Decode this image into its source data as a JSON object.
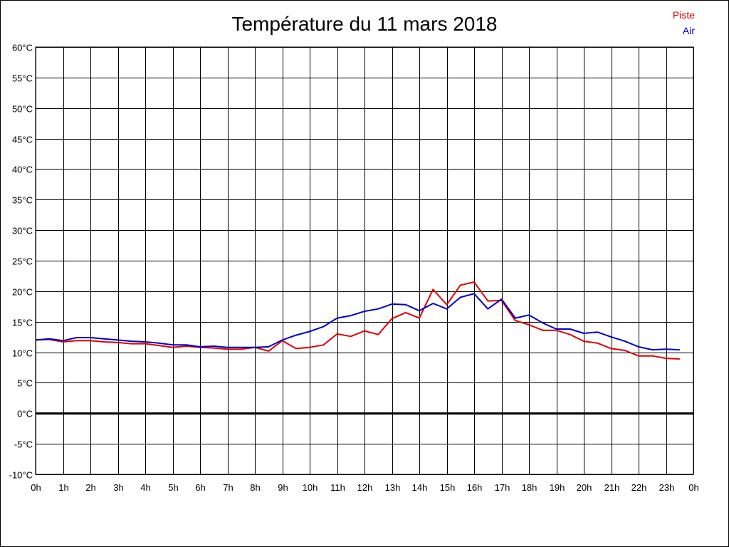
{
  "chart_data": {
    "type": "line",
    "title": "Température du 11 mars 2018",
    "xlabel": "",
    "ylabel": "",
    "ylim": [
      -10,
      60
    ],
    "xlim": [
      0,
      24
    ],
    "grid": true,
    "legend_position": "top-right",
    "y_ticks": [
      60,
      55,
      50,
      45,
      40,
      35,
      30,
      25,
      20,
      15,
      10,
      5,
      0,
      -5,
      -10
    ],
    "y_tick_labels": [
      "60°C",
      "55°C",
      "50°C",
      "45°C",
      "40°C",
      "35°C",
      "30°C",
      "25°C",
      "20°C",
      "15°C",
      "10°C",
      "5°C",
      "0°C",
      "-5°C",
      "-10°C"
    ],
    "x_ticks": [
      0,
      1,
      2,
      3,
      4,
      5,
      6,
      7,
      8,
      9,
      10,
      11,
      12,
      13,
      14,
      15,
      16,
      17,
      18,
      19,
      20,
      21,
      22,
      23,
      24
    ],
    "x_tick_labels": [
      "0h",
      "1h",
      "2h",
      "3h",
      "4h",
      "5h",
      "6h",
      "7h",
      "8h",
      "9h",
      "10h",
      "11h",
      "12h",
      "13h",
      "14h",
      "15h",
      "16h",
      "17h",
      "18h",
      "19h",
      "20h",
      "21h",
      "22h",
      "23h",
      "0h"
    ],
    "series": [
      {
        "name": "Piste",
        "color": "#e00000",
        "x": [
          0,
          0.5,
          1,
          1.5,
          2,
          2.5,
          3,
          3.5,
          4,
          4.5,
          5,
          5.5,
          6,
          6.5,
          7,
          7.5,
          8,
          8.5,
          9,
          9.5,
          10,
          10.5,
          11,
          11.5,
          12,
          12.5,
          13,
          13.5,
          14,
          14.5,
          15,
          15.5,
          16,
          16.5,
          17,
          17.5,
          18,
          18.5,
          19,
          19.5,
          20,
          20.5,
          21,
          21.5,
          22,
          22.5,
          23,
          23.5
        ],
        "values": [
          12.0,
          12.1,
          11.7,
          11.9,
          11.9,
          11.7,
          11.6,
          11.4,
          11.4,
          11.1,
          10.8,
          11.0,
          10.8,
          10.7,
          10.5,
          10.5,
          10.8,
          10.2,
          11.9,
          10.6,
          10.8,
          11.2,
          13.0,
          12.6,
          13.5,
          12.9,
          15.5,
          16.5,
          15.6,
          20.3,
          17.8,
          21.0,
          21.5,
          18.4,
          18.5,
          15.2,
          14.5,
          13.6,
          13.6,
          12.9,
          11.8,
          11.5,
          10.6,
          10.3,
          9.4,
          9.4,
          9.0,
          8.9
        ]
      },
      {
        "name": "Air",
        "color": "#0000cc",
        "x": [
          0,
          0.5,
          1,
          1.5,
          2,
          2.5,
          3,
          3.5,
          4,
          4.5,
          5,
          5.5,
          6,
          6.5,
          7,
          7.5,
          8,
          8.5,
          9,
          9.5,
          10,
          10.5,
          11,
          11.5,
          12,
          12.5,
          13,
          13.5,
          14,
          14.5,
          15,
          15.5,
          16,
          16.5,
          17,
          17.5,
          18,
          18.5,
          19,
          19.5,
          20,
          20.5,
          21,
          21.5,
          22,
          22.5,
          23,
          23.5
        ],
        "values": [
          12.0,
          12.2,
          11.9,
          12.4,
          12.4,
          12.2,
          12.0,
          11.8,
          11.7,
          11.5,
          11.2,
          11.2,
          10.9,
          11.0,
          10.8,
          10.8,
          10.8,
          10.9,
          12.0,
          12.8,
          13.4,
          14.2,
          15.6,
          16.0,
          16.7,
          17.1,
          17.9,
          17.8,
          16.8,
          18.0,
          17.1,
          19.0,
          19.6,
          17.1,
          18.7,
          15.6,
          16.1,
          14.8,
          13.8,
          13.8,
          13.1,
          13.3,
          12.5,
          11.8,
          10.9,
          10.4,
          10.5,
          10.4
        ]
      }
    ]
  }
}
